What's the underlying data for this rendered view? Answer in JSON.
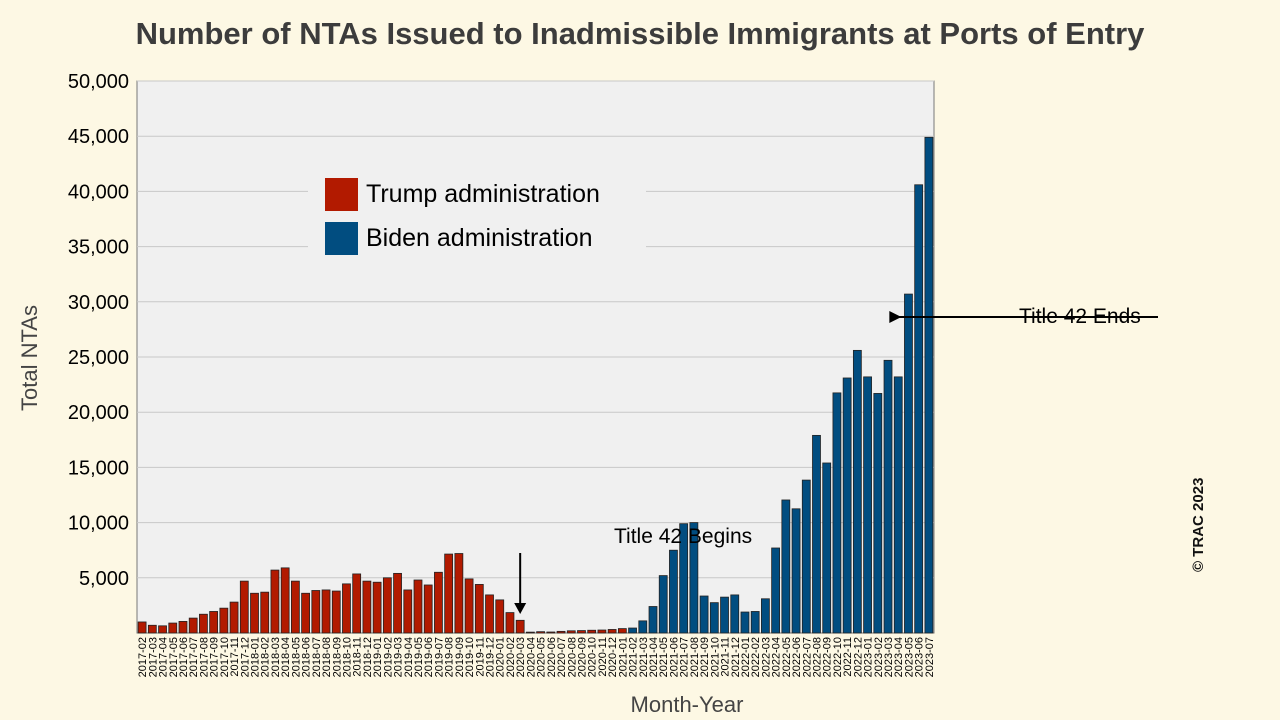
{
  "chart_data": {
    "type": "bar",
    "title": "Number of NTAs Issued to Inadmissible Immigrants at Ports of Entry",
    "xlabel": "Month-Year",
    "ylabel": "Total NTAs",
    "ylim": [
      0,
      50000
    ],
    "yticks": [
      "50,000",
      "45,000",
      "40,000",
      "35,000",
      "30,000",
      "25,000",
      "20,000",
      "15,000",
      "10,000",
      "5,000"
    ],
    "ytick_values": [
      50000,
      45000,
      40000,
      35000,
      30000,
      25000,
      20000,
      15000,
      10000,
      5000
    ],
    "grid": true,
    "legend_placement": "upper-left",
    "categories": [
      "2017-02",
      "2017-03",
      "2017-04",
      "2017-05",
      "2017-06",
      "2017-07",
      "2017-08",
      "2017-09",
      "2017-10",
      "2017-11",
      "2017-12",
      "2018-01",
      "2018-02",
      "2018-03",
      "2018-04",
      "2018-05",
      "2018-06",
      "2018-07",
      "2018-08",
      "2018-09",
      "2018-10",
      "2018-11",
      "2018-12",
      "2019-01",
      "2019-02",
      "2019-03",
      "2019-04",
      "2019-05",
      "2019-06",
      "2019-07",
      "2019-08",
      "2019-09",
      "2019-10",
      "2019-11",
      "2019-12",
      "2020-01",
      "2020-02",
      "2020-03",
      "2020-04",
      "2020-05",
      "2020-06",
      "2020-07",
      "2020-08",
      "2020-09",
      "2020-10",
      "2020-11",
      "2020-12",
      "2021-01",
      "2021-02",
      "2021-03",
      "2021-04",
      "2021-05",
      "2021-06",
      "2021-07",
      "2021-08",
      "2021-09",
      "2021-10",
      "2021-11",
      "2021-12",
      "2022-01",
      "2022-02",
      "2022-03",
      "2022-04",
      "2022-05",
      "2022-06",
      "2022-07",
      "2022-08",
      "2022-09",
      "2022-10",
      "2022-11",
      "2022-12",
      "2023-01",
      "2023-02",
      "2023-03",
      "2023-04",
      "2023-05",
      "2023-06",
      "2023-07"
    ],
    "values": [
      1000,
      700,
      650,
      900,
      1050,
      1350,
      1700,
      1950,
      2250,
      2800,
      4700,
      3600,
      3700,
      5700,
      5900,
      4700,
      3600,
      3850,
      3900,
      3800,
      4450,
      5350,
      4700,
      4600,
      5000,
      5400,
      3900,
      4800,
      4350,
      5500,
      7150,
      7200,
      4900,
      4400,
      3450,
      3000,
      1850,
      1150,
      80,
      120,
      90,
      150,
      200,
      220,
      250,
      270,
      320,
      400,
      450,
      1100,
      2400,
      5200,
      7500,
      9900,
      10000,
      3350,
      2750,
      3250,
      3450,
      1900,
      1950,
      3100,
      7700,
      12050,
      11250,
      13850,
      17900,
      15400,
      21750,
      23100,
      25600,
      23200,
      21700,
      24700,
      23200,
      30700,
      40600,
      44900
    ],
    "series": [
      {
        "name": "Trump administration",
        "color": "#b21a00",
        "from": "2017-02",
        "to": "2021-01"
      },
      {
        "name": "Biden administration",
        "color": "#014d80",
        "from": "2021-02",
        "to": "2023-07"
      }
    ],
    "annotations": [
      {
        "text": "Title 42 Begins",
        "category": "2020-03"
      },
      {
        "text": "Title 42 Ends",
        "category": "2023-05"
      }
    ],
    "colors": {
      "background": "#fdf8e4",
      "plot_background": "#f0f0f0"
    }
  },
  "copyright": "© TRAC 2023"
}
